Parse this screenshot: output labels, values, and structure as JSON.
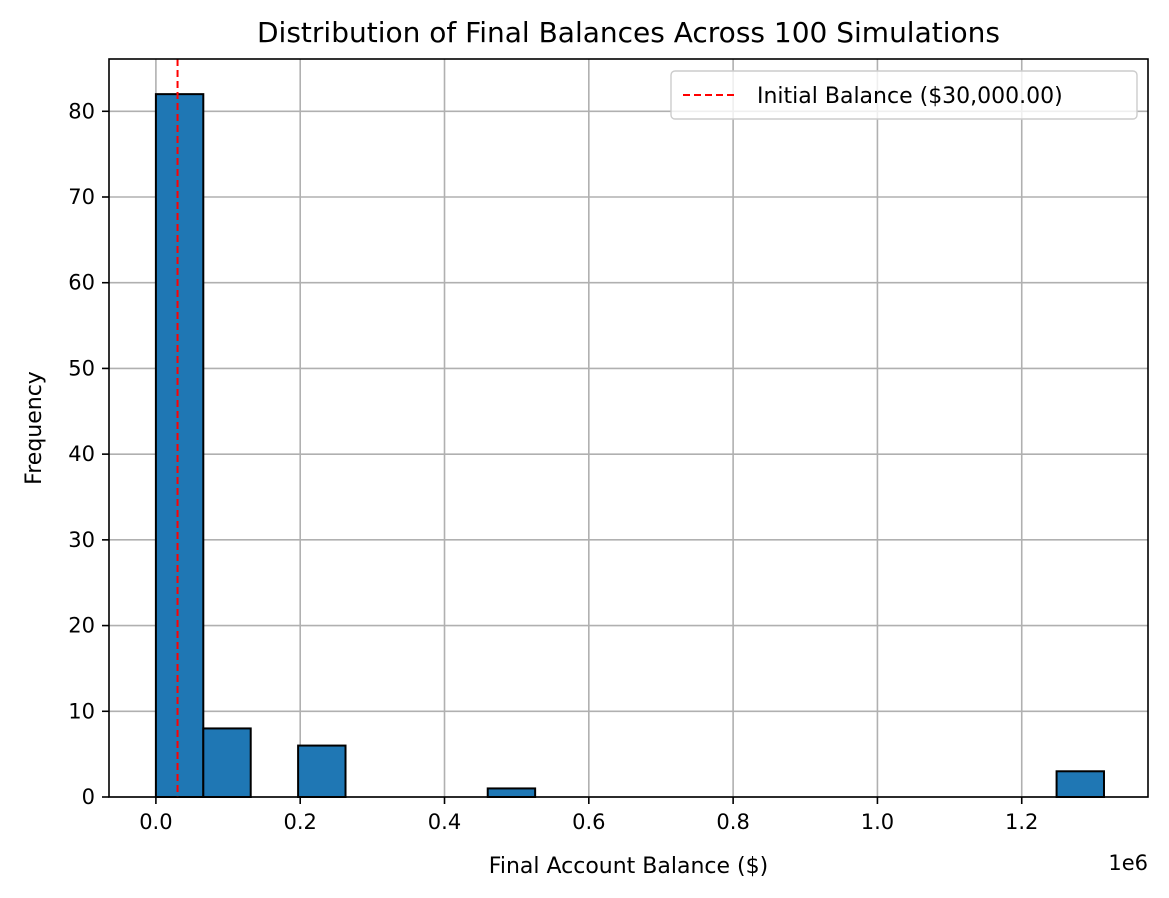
{
  "chart_data": {
    "type": "bar",
    "title": "Distribution of Final Balances Across 100 Simulations",
    "xlabel": "Final Account Balance ($)",
    "ylabel": "Frequency",
    "x_offset_text": "1e6",
    "x_scale_factor": 1000000,
    "xlim": [
      -0.065,
      1.375
    ],
    "ylim": [
      0,
      86.1
    ],
    "x_ticks": [
      0.0,
      0.2,
      0.4,
      0.6,
      0.8,
      1.0,
      1.2
    ],
    "x_tick_labels": [
      "0.0",
      "0.2",
      "0.4",
      "0.6",
      "0.8",
      "1.0",
      "1.2"
    ],
    "y_ticks": [
      0,
      10,
      20,
      30,
      40,
      50,
      60,
      70,
      80
    ],
    "y_tick_labels": [
      "0",
      "10",
      "20",
      "30",
      "40",
      "50",
      "60",
      "70",
      "80"
    ],
    "grid": true,
    "bin_width": 0.0657,
    "bins": [
      {
        "x0": 0.0,
        "count": 82
      },
      {
        "x0": 0.0657,
        "count": 8
      },
      {
        "x0": 0.1971,
        "count": 6
      },
      {
        "x0": 0.4599,
        "count": 1
      },
      {
        "x0": 1.2483,
        "count": 3
      }
    ],
    "bar_color": "#1f77b4",
    "bar_edge_color": "#000000",
    "reference_line": {
      "x": 0.03,
      "color": "#ff0000",
      "style": "dashed",
      "label": "Initial Balance ($30,000.00)"
    },
    "legend_position": "upper right"
  }
}
